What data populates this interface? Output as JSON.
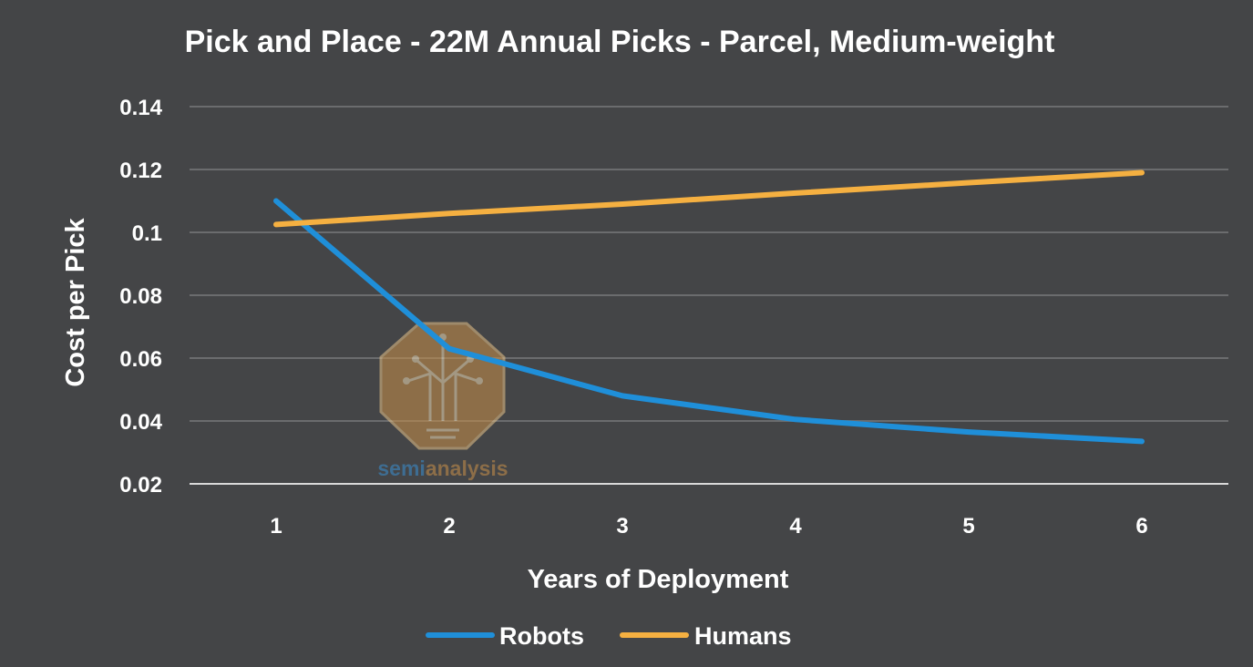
{
  "chart_data": {
    "type": "line",
    "title": "Pick and Place - 22M Annual Picks - Parcel, Medium-weight",
    "xlabel": "Years of Deployment",
    "ylabel": "Cost per Pick",
    "x": [
      1,
      2,
      3,
      4,
      5,
      6
    ],
    "ylim": [
      0.02,
      0.14
    ],
    "yticks": [
      "0.02",
      "0.04",
      "0.06",
      "0.08",
      "0.1",
      "0.12",
      "0.14"
    ],
    "grid": true,
    "legend_position": "bottom",
    "series": [
      {
        "name": "Robots",
        "color": "#1f8fd9",
        "values": [
          0.11,
          0.063,
          0.048,
          0.0405,
          0.0365,
          0.0335
        ]
      },
      {
        "name": "Humans",
        "color": "#f5b041",
        "values": [
          0.1025,
          0.106,
          0.109,
          0.1125,
          0.1158,
          0.119
        ]
      }
    ]
  },
  "watermark": {
    "text_part1": "semi",
    "text_part2": "analysis",
    "icon": "tree-circuit-icon",
    "color": "#c9914a"
  }
}
